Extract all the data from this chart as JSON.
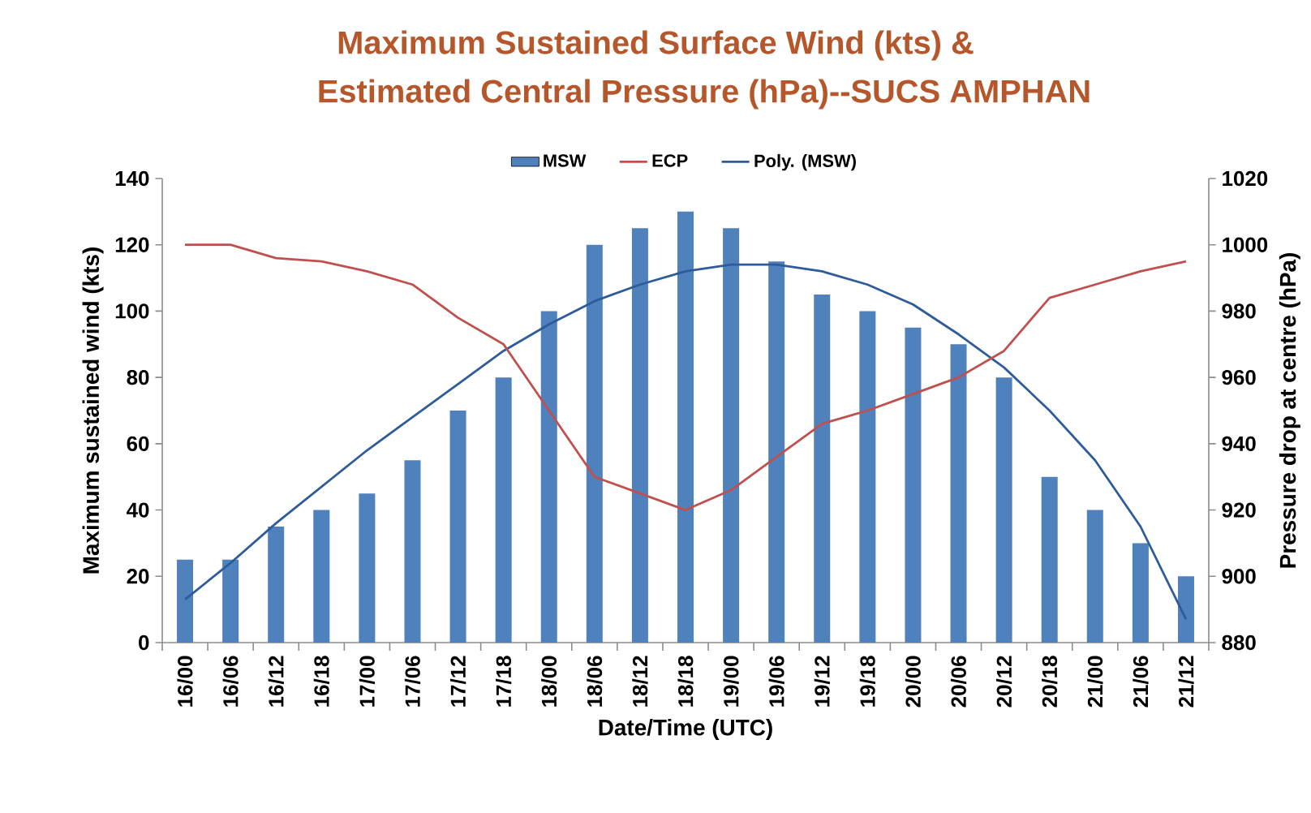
{
  "chart_data": {
    "type": "bar",
    "title": "Maximum Sustained Surface Wind (kts)  &",
    "subtitle": "Estimated Central Pressure (hPa)--SUCS AMPHAN",
    "xlabel": "Date/Time (UTC)",
    "ylabel": "Maximum sustained wind (kts)",
    "y2label": "Pressure drop at centre  (hPa)",
    "categories": [
      "16/00",
      "16/06",
      "16/12",
      "16/18",
      "17/00",
      "17/06",
      "17/12",
      "17/18",
      "18/00",
      "18/06",
      "18/12",
      "18/18",
      "19/00",
      "19/06",
      "19/12",
      "19/18",
      "20/00",
      "20/06",
      "20/12",
      "20/18",
      "21/00",
      "21/06",
      "21/12"
    ],
    "series": [
      {
        "name": "MSW",
        "color": "#4f81bd",
        "values": [
          25,
          25,
          35,
          40,
          45,
          55,
          70,
          80,
          100,
          120,
          125,
          130,
          125,
          115,
          105,
          100,
          95,
          90,
          80,
          50,
          40,
          30,
          20
        ]
      },
      {
        "name": "ECP",
        "type": "line",
        "axis": "y2",
        "color": "#c0504d",
        "values": [
          1000,
          1000,
          996,
          995,
          992,
          988,
          978,
          970,
          950,
          930,
          925,
          920,
          926,
          936,
          946,
          950,
          955,
          960,
          968,
          984,
          988,
          992,
          995
        ]
      },
      {
        "name": "Poly. (MSW)",
        "type": "line",
        "color": "#2e5c9a",
        "values": [
          13,
          24,
          36,
          47,
          58,
          68,
          78,
          88,
          96,
          103,
          108,
          112,
          114,
          114,
          112,
          108,
          102,
          93,
          83,
          70,
          55,
          35,
          7
        ]
      }
    ],
    "ylim": [
      0,
      140
    ],
    "yticks": [
      0,
      20,
      40,
      60,
      80,
      100,
      120,
      140
    ],
    "y2lim": [
      880,
      1020
    ],
    "y2ticks": [
      880,
      900,
      920,
      940,
      960,
      980,
      1000,
      1020
    ],
    "legend": "top"
  }
}
